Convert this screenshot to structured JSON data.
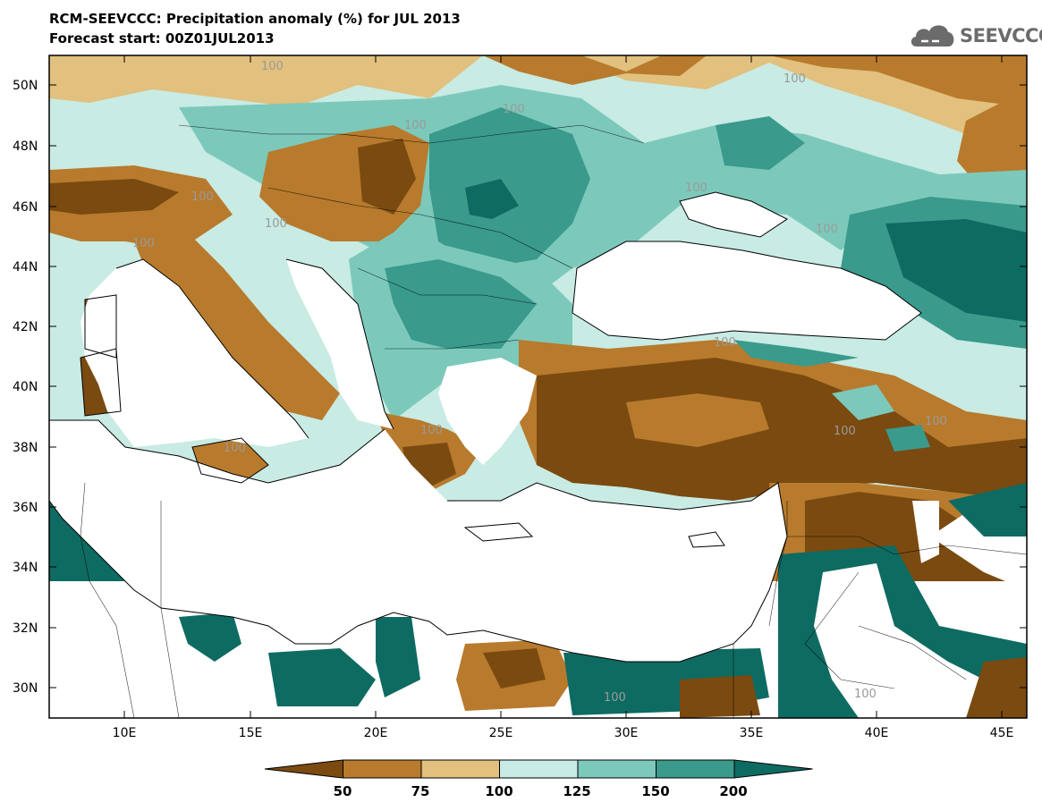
{
  "title_line1": "RCM-SEEVCCC: Precipitation anomaly (%) for JUL 2013",
  "title_line2": "Forecast start: 00Z01JUL2013",
  "logo": {
    "text": "SEEVCCC",
    "icon": "cloud-icon"
  },
  "axes": {
    "lat_labels": [
      "50N",
      "48N",
      "46N",
      "44N",
      "42N",
      "40N",
      "38N",
      "36N",
      "34N",
      "32N",
      "30N"
    ],
    "lon_labels": [
      "10E",
      "15E",
      "20E",
      "25E",
      "30E",
      "35E",
      "40E",
      "45E"
    ]
  },
  "contour_labels": [
    "100",
    "100",
    "100",
    "100",
    "100",
    "100",
    "100",
    "100",
    "100",
    "100",
    "100",
    "100",
    "100",
    "100",
    "100",
    "100"
  ],
  "colorbar": {
    "ticks": [
      "50",
      "75",
      "100",
      "125",
      "150",
      "200"
    ],
    "colors": [
      "#7a4a10",
      "#b87a2c",
      "#e2c07e",
      "#c8ebe4",
      "#7cc9bb",
      "#3a9a8c",
      "#0e6b62"
    ]
  }
}
